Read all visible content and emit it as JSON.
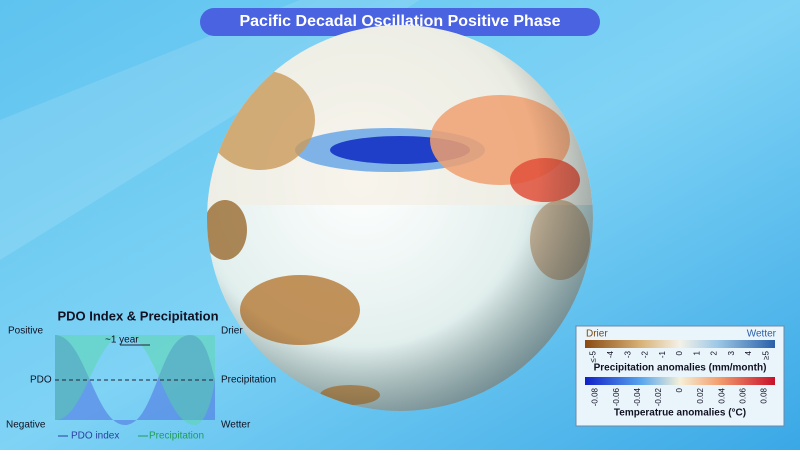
{
  "header": {
    "title": "Pacific Decadal Oscillation Positive Phase"
  },
  "inset": {
    "title": "PDO Index & Precipitation",
    "left_top": "Positive",
    "left_mid": "PDO",
    "left_bottom": "Negative",
    "right_top": "Drier",
    "right_mid": "Precipitation",
    "right_bottom": "Wetter",
    "period": "~1 year",
    "legend": [
      "PDO index",
      "Precipitation"
    ]
  },
  "legend": {
    "precip_left": "Drier",
    "precip_right": "Wetter",
    "precip_ticks": [
      "≤-5",
      "-4",
      "-3",
      "-2",
      "-1",
      "0",
      "1",
      "2",
      "3",
      "4",
      "≥5"
    ],
    "precip_label": "Precipitation anomalies (mm/month)",
    "temp_ticks": [
      "-0.08",
      "-0.06",
      "-0.04",
      "-0.02",
      "0",
      "0.02",
      "0.04",
      "0.06",
      "0.08"
    ],
    "temp_label": "Temperatrue anomalies (°C)"
  }
}
